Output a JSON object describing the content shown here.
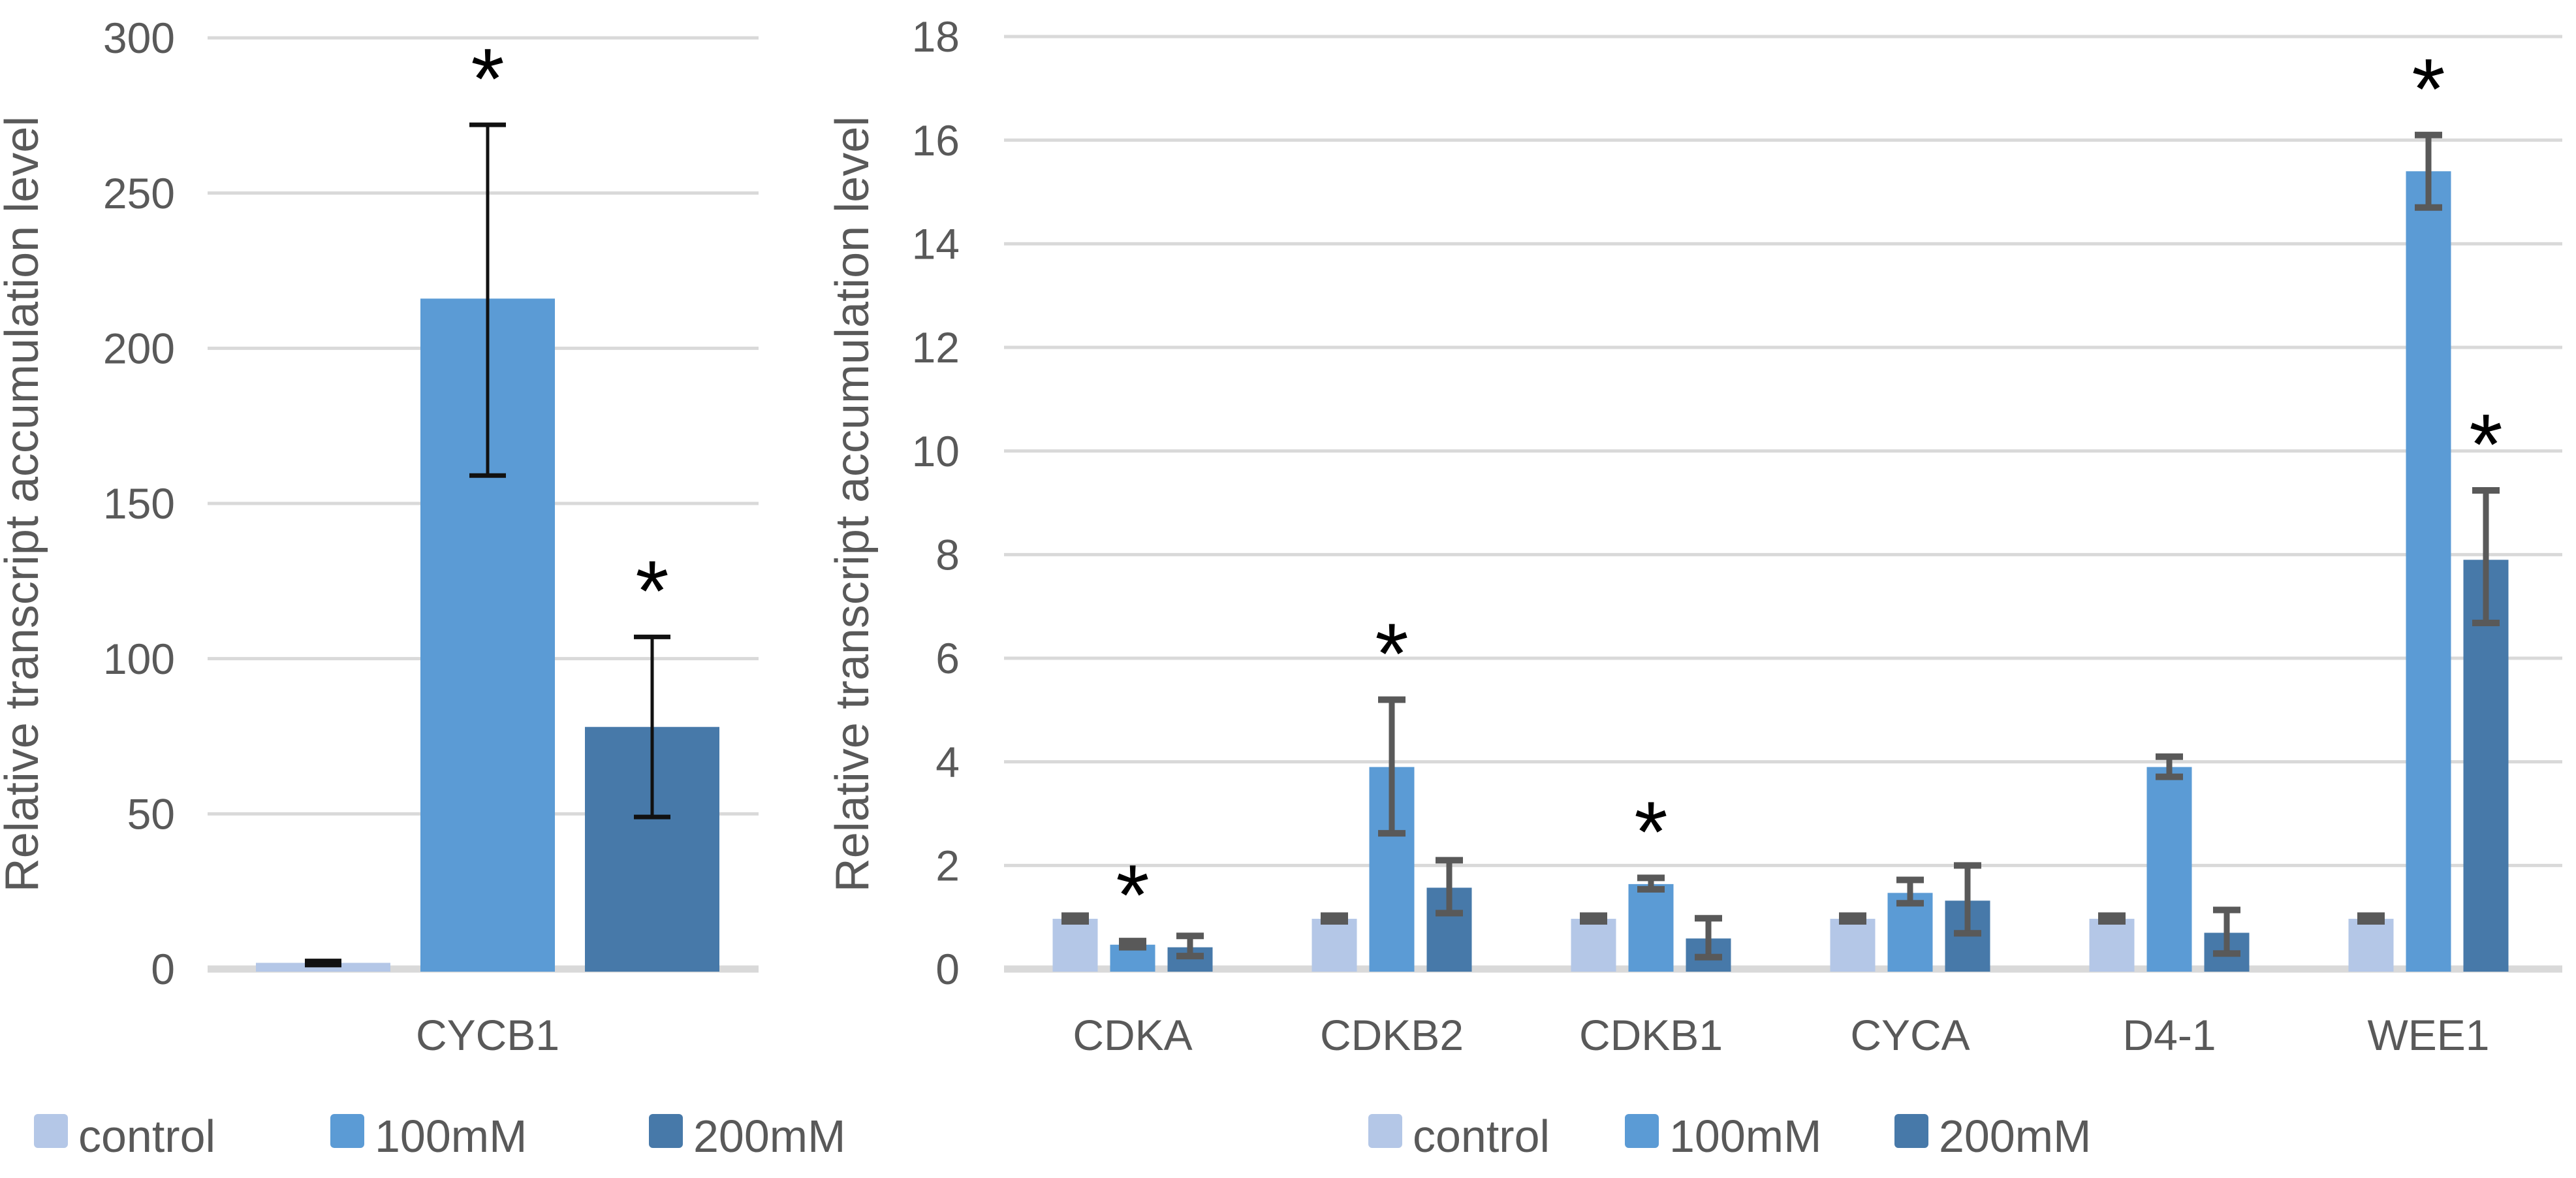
{
  "page": {
    "left_y_axis_title": "Relative transcript accumulation level",
    "right_y_axis_title": "Relative transcript accumulation level",
    "significance_marker": "*"
  },
  "chart_data": [
    {
      "type": "bar",
      "title": "",
      "xlabel": "",
      "ylabel": "Relative transcript accumulation level",
      "ylim": [
        0,
        300
      ],
      "ytick_step": 50,
      "grid": true,
      "legend_position": "bottom",
      "categories": [
        "CYCB1"
      ],
      "series": [
        {
          "name": "control",
          "color": "#B4C7E7",
          "values": [
            2
          ],
          "err_lo": [
            1.3
          ],
          "err_hi": [
            2.6
          ],
          "sig": [
            false
          ]
        },
        {
          "name": "100mM",
          "color": "#5B9BD5",
          "values": [
            216
          ],
          "err_lo": [
            159
          ],
          "err_hi": [
            272
          ],
          "sig": [
            true
          ]
        },
        {
          "name": "200mM",
          "color": "#4779A9",
          "values": [
            78
          ],
          "err_lo": [
            49
          ],
          "err_hi": [
            107
          ],
          "sig": [
            true
          ]
        }
      ]
    },
    {
      "type": "bar",
      "title": "",
      "xlabel": "",
      "ylabel": "Relative transcript accumulation level",
      "ylim": [
        0,
        18
      ],
      "ytick_step": 2,
      "grid": true,
      "legend_position": "bottom",
      "categories": [
        "CDKA",
        "CDKB2",
        "CDKB1",
        "CYCA",
        "D4-1",
        "WEE1"
      ],
      "series": [
        {
          "name": "control",
          "color": "#B4C7E7",
          "values": [
            0.97,
            0.97,
            0.97,
            0.97,
            0.97,
            0.97
          ],
          "err_lo": [
            0.92,
            0.92,
            0.92,
            0.92,
            0.92,
            0.92
          ],
          "err_hi": [
            1.03,
            1.03,
            1.03,
            1.03,
            1.03,
            1.03
          ],
          "sig": [
            false,
            false,
            false,
            false,
            false,
            false
          ]
        },
        {
          "name": "100mM",
          "color": "#5B9BD5",
          "values": [
            0.47,
            3.9,
            1.64,
            1.47,
            3.9,
            15.4
          ],
          "err_lo": [
            0.42,
            2.62,
            1.54,
            1.27,
            3.71,
            14.7
          ],
          "err_hi": [
            0.54,
            5.2,
            1.76,
            1.72,
            4.1,
            16.1
          ],
          "sig": [
            true,
            true,
            true,
            false,
            false,
            true
          ]
        },
        {
          "name": "200mM",
          "color": "#4779A9",
          "values": [
            0.42,
            1.57,
            0.59,
            1.32,
            0.7,
            7.9
          ],
          "err_lo": [
            0.25,
            1.08,
            0.23,
            0.69,
            0.3,
            6.68
          ],
          "err_hi": [
            0.64,
            2.1,
            0.98,
            2.0,
            1.14,
            9.24
          ],
          "sig": [
            false,
            false,
            false,
            false,
            false,
            true
          ]
        }
      ]
    }
  ]
}
